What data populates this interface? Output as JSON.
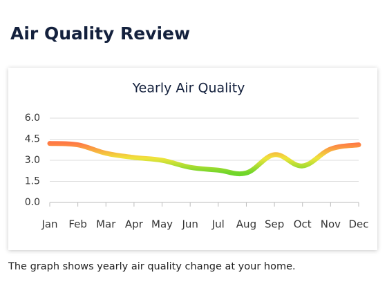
{
  "header": {
    "title": "Air Quality Review"
  },
  "chart_data": {
    "type": "line",
    "title": "Yearly Air Quality",
    "categories": [
      "Jan",
      "Feb",
      "Mar",
      "Apr",
      "May",
      "Jun",
      "Jul",
      "Aug",
      "Sep",
      "Oct",
      "Nov",
      "Dec"
    ],
    "values": [
      4.2,
      4.1,
      3.5,
      3.2,
      3.0,
      2.5,
      2.3,
      2.1,
      3.4,
      2.6,
      3.8,
      4.1
    ],
    "color_scale": [
      "#6fd62a",
      "#f0e43c",
      "#ff7a45"
    ],
    "ylim": [
      0,
      6
    ],
    "yticks": [
      {
        "value": 0,
        "label": "0.0"
      },
      {
        "value": 1.5,
        "label": "1.5"
      },
      {
        "value": 3,
        "label": "3.0"
      },
      {
        "value": 4.5,
        "label": "4.5"
      },
      {
        "value": 6,
        "label": "6.0"
      }
    ],
    "grid": true
  },
  "caption": "The graph shows yearly air quality change at your home."
}
